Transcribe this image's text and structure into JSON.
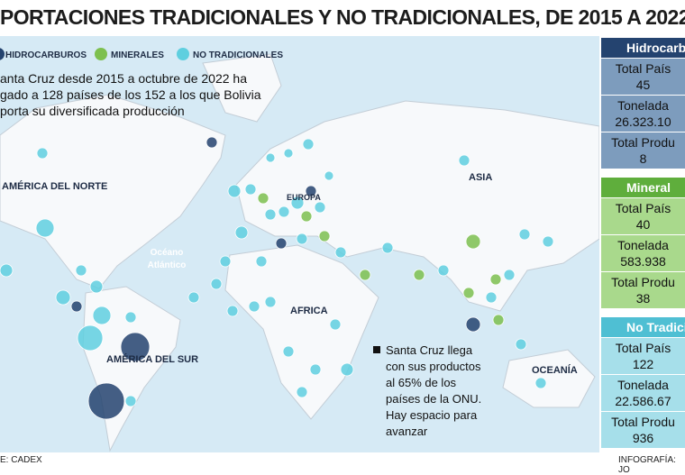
{
  "header": {
    "title": "PORTACIONES TRADICIONALES Y NO TRADICIONALES, DE 2015 A 2022"
  },
  "legend": [
    "HIDROCARBUROS",
    "MINERALES",
    "NO TRADICIONALES"
  ],
  "intro": [
    "anta Cruz desde 2015 a octubre de 2022 ha",
    "gado a 128 países de los 152 a los que Bolivia",
    "porta su diversificada producción"
  ],
  "map_labels": {
    "north_america": "AMÉRICA DEL NORTE",
    "europe": "EUROPA",
    "asia": "ASIA",
    "ocean": [
      "Océano",
      "Atlántico"
    ],
    "africa": "AFRICA",
    "south_america": "AMÉRICA DEL SUR",
    "oceania": "OCEANÍA"
  },
  "note": [
    "Santa Cruz llega",
    "con sus productos",
    "al 65% de los",
    "países de la ONU.",
    "Hay espacio para",
    "avanzar"
  ],
  "panels": [
    {
      "title": "Hidrocarbu",
      "rows": [
        [
          "Total País",
          "45"
        ],
        [
          "Tonelada",
          "26.323.10"
        ],
        [
          "Total Produ",
          "8"
        ]
      ]
    },
    {
      "title": "Mineral",
      "rows": [
        [
          "Total País",
          "40"
        ],
        [
          "Tonelada",
          "583.938"
        ],
        [
          "Total Produ",
          "38"
        ]
      ]
    },
    {
      "title": "No Tradicion",
      "rows": [
        [
          "Total País",
          "122"
        ],
        [
          "Tonelada",
          "22.586.67"
        ],
        [
          "Total Produ",
          "936"
        ]
      ]
    }
  ],
  "footer": {
    "source": "E: CADEX",
    "credit": "INFOGRAFÍA: JO"
  }
}
